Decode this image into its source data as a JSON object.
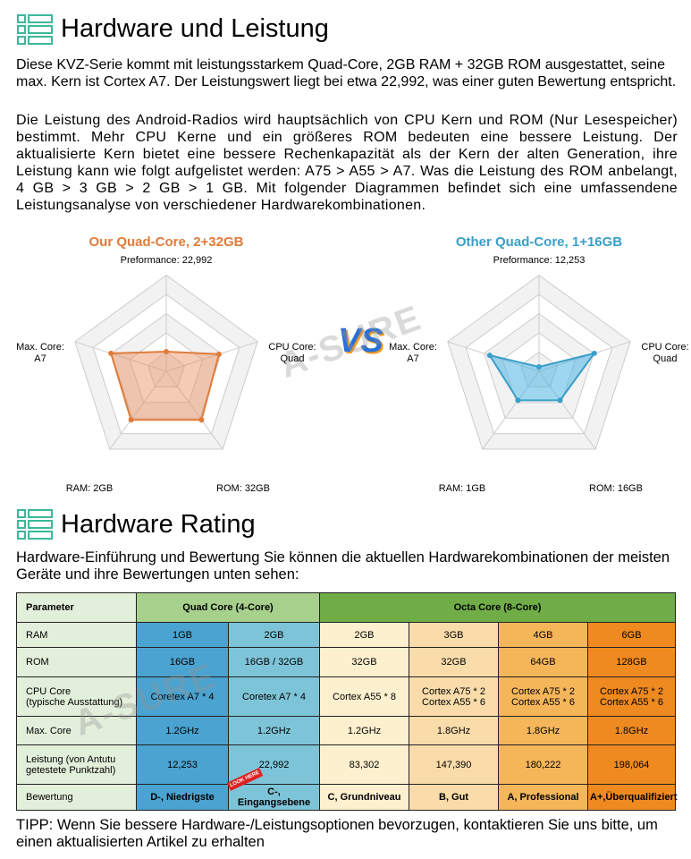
{
  "section1": {
    "title": "Hardware und Leistung",
    "paragraphs": [
      "Diese KVZ-Serie kommt mit leistungsstarkem Quad-Core, 2GB RAM + 32GB ROM ausgestattet, seine max. Kern ist Cortex A7. Der Leistungswert liegt bei etwa 22,992, was einer guten Bewertung entspricht.",
      "Die Leistung des Android-Radios wird hauptsächlich von CPU Kern und ROM (Nur Lesespeicher) bestimmt. Mehr CPU Kerne und ein größeres ROM bedeuten eine bessere Leistung. Der aktualisierte Kern bietet eine bessere Rechenkapazität als der Kern der alten Generation, ihre Leistung kann wie folgt aufgelistet werden: A75 > A55 > A7. Was die Leistung des ROM anbelangt, 4 GB > 3 GB > 2 GB > 1 GB. Mit folgender Diagrammen befindet sich eine umfassendene Leistungsanalyse von verschiedener Hardwarekombinationen."
    ]
  },
  "radars": [
    {
      "title": "Our Quad-Core, 2+32GB",
      "labels": [
        "Preformance: 22,992",
        "CPU Core:\nQuad",
        "ROM: 32GB",
        "RAM: 2GB",
        "Max. Core:\nA7"
      ]
    },
    {
      "title": "Other Quad-Core, 1+16GB",
      "labels": [
        "Preformance: 12,253",
        "CPU Core:\nQuad",
        "ROM: 16GB",
        "RAM: 1GB",
        "Max. Core:\nA7"
      ]
    }
  ],
  "vs": "VS",
  "watermark": "A-SURE",
  "section2": {
    "title": "Hardware Rating",
    "intro": "Hardware-Einführung und Bewertung Sie können die aktuellen Hardwarekombinationen der meisten Geräte und ihre Bewertungen unten sehen:"
  },
  "table": {
    "header": [
      "Parameter",
      "Quad Core (4-Core)",
      "Octa Core (8-Core)"
    ],
    "rows": [
      [
        "RAM",
        "1GB",
        "2GB",
        "2GB",
        "3GB",
        "4GB",
        "6GB"
      ],
      [
        "ROM",
        "16GB",
        "16GB / 32GB",
        "32GB",
        "32GB",
        "64GB",
        "128GB"
      ],
      [
        "CPU Core\n(typische Ausstattung)",
        "Coretex A7 * 4",
        "Coretex A7 * 4",
        "Cortex A55 * 8",
        "Cortex A75 * 2\nCortex A55 * 6",
        "Cortex A75 * 2\nCortex A55 * 6",
        "Cortex A75 * 2\nCortex A55 * 6"
      ],
      [
        "Max. Core",
        "1.2GHz",
        "1.2GHz",
        "1.2GHz",
        "1.8GHz",
        "1.8GHz",
        "1.8GHz"
      ],
      [
        "Leistung (von Antutu\ngetestete Punktzahl)",
        "12,253",
        "22,992",
        "83,302",
        "147,390",
        "180,222",
        "198,064"
      ],
      [
        "Bewertung",
        "D-, Niedrigste",
        "C-, Eingangsebene",
        "C, Grundniveau",
        "B, Gut",
        "A, Professional",
        "A+,Überqualifiziert"
      ]
    ]
  },
  "badge": "LOOK HERE",
  "tip": "TIPP: Wenn Sie bessere Hardware-/Leistungsoptionen bevorzugen, kontaktieren Sie uns bitte, um einen aktualisierten Artikel zu erhalten"
}
